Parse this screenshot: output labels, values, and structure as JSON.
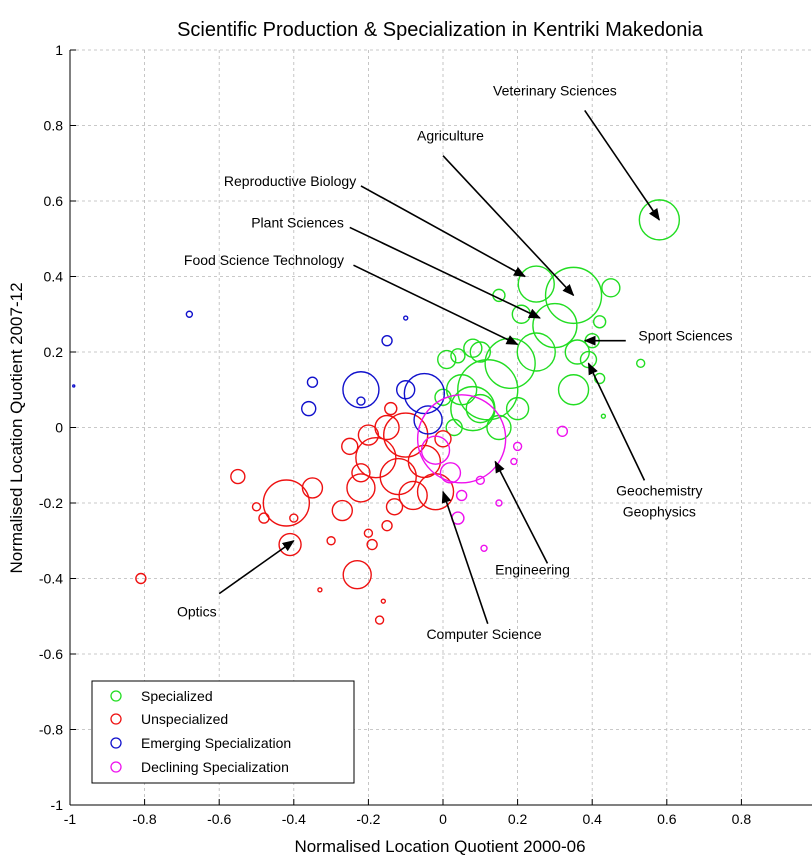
{
  "chart_data": {
    "type": "scatter",
    "title": "Scientific Production & Specialization in Kentriki Makedonia",
    "xlabel": "Normalised Location Quotient 2000-06",
    "ylabel": "Normalised Location Quotient 2007-12",
    "xlim": [
      -1,
      1
    ],
    "ylim": [
      -1,
      1
    ],
    "grid": true,
    "x_ticks": [
      "-1",
      "-0.8",
      "-0.6",
      "-0.4",
      "-0.2",
      "0",
      "0.2",
      "0.4",
      "0.6",
      "0.8",
      "1"
    ],
    "y_ticks": [
      "-1",
      "-0.8",
      "-0.6",
      "-0.4",
      "-0.2",
      "0",
      "0.2",
      "0.4",
      "0.6",
      "0.8",
      "1"
    ],
    "legend": {
      "placement": "bottom-left",
      "entries": [
        {
          "label": "Specialized",
          "color": "#22dd22"
        },
        {
          "label": "Unspecialized",
          "color": "#ee1111"
        },
        {
          "label": "Emerging Specialization",
          "color": "#1111cc"
        },
        {
          "label": "Declining Specialization",
          "color": "#ee11ee"
        }
      ]
    },
    "series": [
      {
        "name": "Specialized",
        "color": "#22dd22",
        "points": [
          {
            "x": 0.58,
            "y": 0.55,
            "r": 20
          },
          {
            "x": 0.35,
            "y": 0.35,
            "r": 28
          },
          {
            "x": 0.25,
            "y": 0.38,
            "r": 18
          },
          {
            "x": 0.3,
            "y": 0.27,
            "r": 22
          },
          {
            "x": 0.21,
            "y": 0.3,
            "r": 9
          },
          {
            "x": 0.15,
            "y": 0.35,
            "r": 6
          },
          {
            "x": 0.45,
            "y": 0.37,
            "r": 9
          },
          {
            "x": 0.42,
            "y": 0.28,
            "r": 6
          },
          {
            "x": 0.39,
            "y": 0.18,
            "r": 8
          },
          {
            "x": 0.36,
            "y": 0.2,
            "r": 12
          },
          {
            "x": 0.4,
            "y": 0.23,
            "r": 7
          },
          {
            "x": 0.35,
            "y": 0.1,
            "r": 15
          },
          {
            "x": 0.25,
            "y": 0.2,
            "r": 19
          },
          {
            "x": 0.18,
            "y": 0.17,
            "r": 25
          },
          {
            "x": 0.12,
            "y": 0.1,
            "r": 30
          },
          {
            "x": 0.08,
            "y": 0.05,
            "r": 22
          },
          {
            "x": 0.05,
            "y": 0.1,
            "r": 15
          },
          {
            "x": 0.1,
            "y": 0.2,
            "r": 10
          },
          {
            "x": 0.01,
            "y": 0.18,
            "r": 9
          },
          {
            "x": 0.04,
            "y": 0.19,
            "r": 7
          },
          {
            "x": 0.08,
            "y": 0.21,
            "r": 9
          },
          {
            "x": 0.2,
            "y": 0.05,
            "r": 11
          },
          {
            "x": 0.15,
            "y": 0.0,
            "r": 12
          },
          {
            "x": 0.42,
            "y": 0.13,
            "r": 5
          },
          {
            "x": 0.53,
            "y": 0.17,
            "r": 4
          },
          {
            "x": 0.43,
            "y": 0.03,
            "r": 2
          },
          {
            "x": 0.0,
            "y": 0.08,
            "r": 8
          },
          {
            "x": 0.03,
            "y": 0.0,
            "r": 8
          },
          {
            "x": 0.1,
            "y": 0.05,
            "r": 14
          }
        ]
      },
      {
        "name": "Unspecialized",
        "color": "#ee1111",
        "points": [
          {
            "x": -0.41,
            "y": -0.31,
            "r": 11
          },
          {
            "x": -0.81,
            "y": -0.4,
            "r": 5
          },
          {
            "x": -0.42,
            "y": -0.2,
            "r": 23
          },
          {
            "x": -0.35,
            "y": -0.16,
            "r": 10
          },
          {
            "x": -0.27,
            "y": -0.22,
            "r": 10
          },
          {
            "x": -0.23,
            "y": -0.39,
            "r": 14
          },
          {
            "x": -0.55,
            "y": -0.13,
            "r": 7
          },
          {
            "x": -0.5,
            "y": -0.21,
            "r": 4
          },
          {
            "x": -0.48,
            "y": -0.24,
            "r": 5
          },
          {
            "x": -0.4,
            "y": -0.24,
            "r": 4
          },
          {
            "x": -0.3,
            "y": -0.3,
            "r": 4
          },
          {
            "x": -0.2,
            "y": -0.28,
            "r": 4
          },
          {
            "x": -0.19,
            "y": -0.31,
            "r": 5
          },
          {
            "x": -0.15,
            "y": -0.26,
            "r": 5
          },
          {
            "x": -0.17,
            "y": -0.51,
            "r": 4
          },
          {
            "x": -0.16,
            "y": -0.46,
            "r": 2
          },
          {
            "x": -0.33,
            "y": -0.43,
            "r": 2
          },
          {
            "x": -0.22,
            "y": -0.16,
            "r": 14
          },
          {
            "x": -0.18,
            "y": -0.08,
            "r": 20
          },
          {
            "x": -0.12,
            "y": -0.13,
            "r": 18
          },
          {
            "x": -0.1,
            "y": -0.02,
            "r": 22
          },
          {
            "x": -0.05,
            "y": -0.09,
            "r": 16
          },
          {
            "x": -0.02,
            "y": -0.17,
            "r": 18
          },
          {
            "x": -0.15,
            "y": 0.0,
            "r": 12
          },
          {
            "x": -0.08,
            "y": -0.18,
            "r": 14
          },
          {
            "x": -0.2,
            "y": -0.02,
            "r": 10
          },
          {
            "x": -0.22,
            "y": -0.12,
            "r": 9
          },
          {
            "x": -0.13,
            "y": -0.21,
            "r": 8
          },
          {
            "x": 0.0,
            "y": -0.03,
            "r": 8
          },
          {
            "x": -0.25,
            "y": -0.05,
            "r": 8
          },
          {
            "x": -0.14,
            "y": 0.05,
            "r": 6
          }
        ]
      },
      {
        "name": "Emerging Specialization",
        "color": "#1111cc",
        "points": [
          {
            "x": -0.68,
            "y": 0.3,
            "r": 3
          },
          {
            "x": -0.22,
            "y": 0.1,
            "r": 18
          },
          {
            "x": -0.35,
            "y": 0.12,
            "r": 5
          },
          {
            "x": -0.36,
            "y": 0.05,
            "r": 7
          },
          {
            "x": -0.15,
            "y": 0.23,
            "r": 5
          },
          {
            "x": -0.1,
            "y": 0.29,
            "r": 2
          },
          {
            "x": -0.05,
            "y": 0.09,
            "r": 20
          },
          {
            "x": -0.1,
            "y": 0.1,
            "r": 9
          },
          {
            "x": -0.04,
            "y": 0.02,
            "r": 14
          },
          {
            "x": -0.22,
            "y": 0.07,
            "r": 4
          },
          {
            "x": -0.99,
            "y": 0.11,
            "r": 1
          }
        ]
      },
      {
        "name": "Declining Specialization",
        "color": "#ee11ee",
        "points": [
          {
            "x": 0.05,
            "y": -0.03,
            "r": 44
          },
          {
            "x": 0.02,
            "y": -0.12,
            "r": 10
          },
          {
            "x": -0.02,
            "y": -0.06,
            "r": 14
          },
          {
            "x": 0.04,
            "y": -0.24,
            "r": 6
          },
          {
            "x": 0.05,
            "y": -0.18,
            "r": 5
          },
          {
            "x": 0.1,
            "y": -0.14,
            "r": 4
          },
          {
            "x": 0.2,
            "y": -0.05,
            "r": 4
          },
          {
            "x": 0.32,
            "y": -0.01,
            "r": 5
          },
          {
            "x": 0.15,
            "y": -0.2,
            "r": 3
          },
          {
            "x": 0.11,
            "y": -0.32,
            "r": 3
          },
          {
            "x": 0.19,
            "y": -0.09,
            "r": 3
          }
        ]
      }
    ],
    "annotations": [
      {
        "label": "Veterinary Sciences",
        "lines": [
          "Veterinary Sciences"
        ],
        "target": [
          0.58,
          0.55
        ],
        "text_at": [
          0.3,
          0.88
        ],
        "tail": [
          0.38,
          0.84
        ]
      },
      {
        "label": "Agriculture",
        "lines": [
          "Agriculture"
        ],
        "target": [
          0.35,
          0.35
        ],
        "text_at": [
          0.02,
          0.76
        ],
        "tail": [
          0.0,
          0.72
        ]
      },
      {
        "label": "Reproductive Biology",
        "lines": [
          "Reproductive Biology"
        ],
        "target": [
          0.22,
          0.4
        ],
        "text_at": [
          -0.41,
          0.64
        ],
        "tail": [
          -0.22,
          0.64
        ]
      },
      {
        "label": "Plant Sciences",
        "lines": [
          "Plant Sciences"
        ],
        "target": [
          0.26,
          0.29
        ],
        "text_at": [
          -0.39,
          0.53
        ],
        "tail": [
          -0.25,
          0.53
        ]
      },
      {
        "label": "Food Science Technology",
        "lines": [
          "Food Science Technology"
        ],
        "target": [
          0.2,
          0.22
        ],
        "text_at": [
          -0.48,
          0.43
        ],
        "tail": [
          -0.24,
          0.43
        ]
      },
      {
        "label": "Sport Sciences",
        "lines": [
          "Sport Sciences"
        ],
        "target": [
          0.38,
          0.23
        ],
        "text_at": [
          0.65,
          0.23
        ],
        "tail": [
          0.49,
          0.23
        ]
      },
      {
        "label": "Geochemistry Geophysics",
        "lines": [
          "Geochemistry",
          "Geophysics"
        ],
        "target": [
          0.39,
          0.17
        ],
        "text_at": [
          0.58,
          -0.18
        ],
        "tail": [
          0.54,
          -0.14
        ]
      },
      {
        "label": "Engineering",
        "lines": [
          "Engineering"
        ],
        "target": [
          0.14,
          -0.09
        ],
        "text_at": [
          0.24,
          -0.39
        ],
        "tail": [
          0.28,
          -0.36
        ]
      },
      {
        "label": "Computer Science",
        "lines": [
          "Computer Science"
        ],
        "target": [
          0.0,
          -0.17
        ],
        "text_at": [
          0.11,
          -0.56
        ],
        "tail": [
          0.12,
          -0.52
        ]
      },
      {
        "label": "Optics",
        "lines": [
          "Optics"
        ],
        "target": [
          -0.4,
          -0.3
        ],
        "text_at": [
          -0.66,
          -0.5
        ],
        "tail": [
          -0.6,
          -0.44
        ]
      }
    ]
  }
}
